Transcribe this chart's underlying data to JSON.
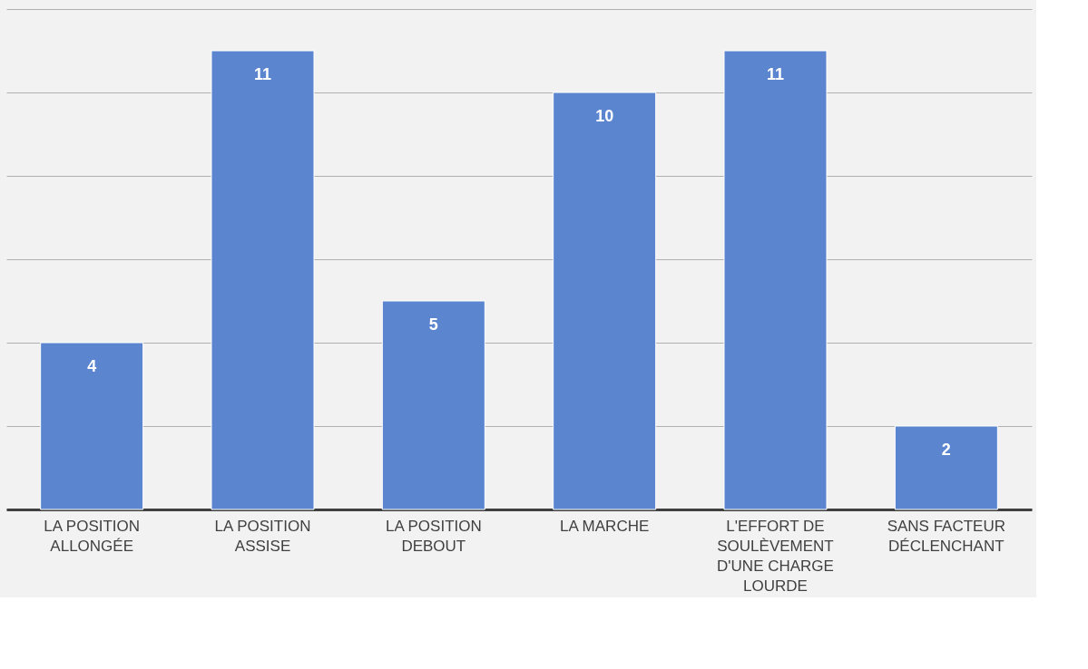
{
  "chart_data": {
    "type": "bar",
    "categories": [
      "LA POSITION ALLONGÉE",
      "LA POSITION ASSISE",
      "LA POSITION DEBOUT",
      "LA MARCHE",
      "L'EFFORT DE SOULÈVEMENT D'UNE CHARGE LOURDE",
      "SANS FACTEUR DÉCLENCHANT"
    ],
    "values": [
      4,
      11,
      5,
      10,
      11,
      2
    ],
    "color": "#5b85cf",
    "ylim": [
      0,
      12
    ],
    "yticks": [
      {
        "value": 0,
        "label": null
      },
      {
        "value": 2,
        "label": null
      },
      {
        "value": 4,
        "label": null
      },
      {
        "value": 6,
        "label": null
      },
      {
        "value": 8,
        "label": null
      },
      {
        "value": 10,
        "label": null
      },
      {
        "value": 12,
        "label": null
      }
    ],
    "grid": "y",
    "tick_labels": "x",
    "data_labels": true
  }
}
